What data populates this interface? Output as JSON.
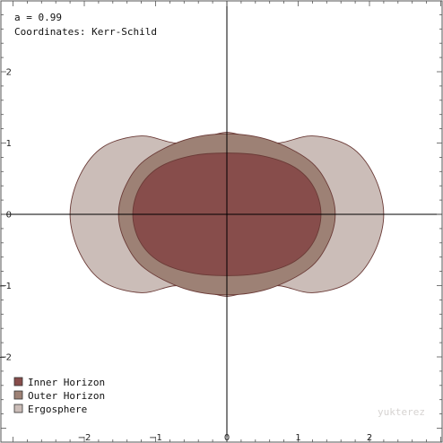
{
  "info": {
    "spin_line": "a = 0.99",
    "coords_line": "Coordinates: Kerr-Schild"
  },
  "watermark": "yukterez",
  "chart_data": {
    "type": "area",
    "title": "",
    "xlabel": "",
    "ylabel": "",
    "xlim": [
      -3.1,
      3.1
    ],
    "ylim": [
      -3.1,
      3.1
    ],
    "grid": false,
    "legend_placement": "bottom-left",
    "x_ticks": [
      {
        "value": -2,
        "label": "−2"
      },
      {
        "value": -1,
        "label": "−1"
      },
      {
        "value": 0,
        "label": "0"
      },
      {
        "value": 1,
        "label": "1"
      },
      {
        "value": 2,
        "label": "2"
      }
    ],
    "y_ticks": [
      {
        "value": 2,
        "label": "2"
      },
      {
        "value": 1,
        "label": "1"
      },
      {
        "value": 0,
        "label": "0"
      },
      {
        "value": -1,
        "label": "−1"
      },
      {
        "value": -2,
        "label": "−2"
      }
    ],
    "series": [
      {
        "name": "Ergosphere",
        "color": "#cbbdb8",
        "outline": [
          [
            2.2,
            0.0
          ],
          [
            2.06,
            0.55
          ],
          [
            1.73,
            0.95
          ],
          [
            1.2,
            1.1
          ],
          [
            0.7,
            1.0
          ],
          [
            0.25,
            1.1
          ],
          [
            0.0,
            1.15
          ],
          [
            -0.25,
            1.1
          ],
          [
            -0.7,
            1.0
          ],
          [
            -1.2,
            1.1
          ],
          [
            -1.73,
            0.95
          ],
          [
            -2.06,
            0.55
          ],
          [
            -2.2,
            0.0
          ],
          [
            -2.06,
            -0.55
          ],
          [
            -1.73,
            -0.95
          ],
          [
            -1.2,
            -1.1
          ],
          [
            -0.7,
            -1.0
          ],
          [
            -0.25,
            -1.1
          ],
          [
            0.0,
            -1.15
          ],
          [
            0.25,
            -1.1
          ],
          [
            0.7,
            -1.0
          ],
          [
            1.2,
            -1.1
          ],
          [
            1.73,
            -0.95
          ],
          [
            2.06,
            -0.55
          ]
        ]
      },
      {
        "name": "Outer Horizon",
        "color": "#9d8175",
        "outline": [
          [
            1.52,
            0.0
          ],
          [
            1.42,
            0.4
          ],
          [
            1.15,
            0.76
          ],
          [
            0.6,
            1.04
          ],
          [
            0.0,
            1.13
          ],
          [
            -0.6,
            1.04
          ],
          [
            -1.15,
            0.76
          ],
          [
            -1.42,
            0.4
          ],
          [
            -1.52,
            0.0
          ],
          [
            -1.42,
            -0.4
          ],
          [
            -1.15,
            -0.76
          ],
          [
            -0.6,
            -1.04
          ],
          [
            0.0,
            -1.13
          ],
          [
            0.6,
            -1.04
          ],
          [
            1.15,
            -0.76
          ],
          [
            1.42,
            -0.4
          ]
        ]
      },
      {
        "name": "Inner Horizon",
        "color": "#874d4b",
        "outline": [
          [
            1.32,
            0.0
          ],
          [
            1.22,
            0.38
          ],
          [
            0.95,
            0.66
          ],
          [
            0.5,
            0.82
          ],
          [
            0.0,
            0.86
          ],
          [
            -0.5,
            0.82
          ],
          [
            -0.95,
            0.66
          ],
          [
            -1.22,
            0.38
          ],
          [
            -1.32,
            0.0
          ],
          [
            -1.22,
            -0.38
          ],
          [
            -0.95,
            -0.66
          ],
          [
            -0.5,
            -0.82
          ],
          [
            0.0,
            -0.86
          ],
          [
            0.5,
            -0.82
          ],
          [
            0.95,
            -0.66
          ],
          [
            1.22,
            -0.38
          ]
        ]
      }
    ],
    "legend": [
      {
        "label": "Inner Horizon",
        "color": "#874d4b"
      },
      {
        "label": "Outer Horizon",
        "color": "#9d8175"
      },
      {
        "label": "Ergosphere",
        "color": "#cbbdb8"
      }
    ]
  }
}
